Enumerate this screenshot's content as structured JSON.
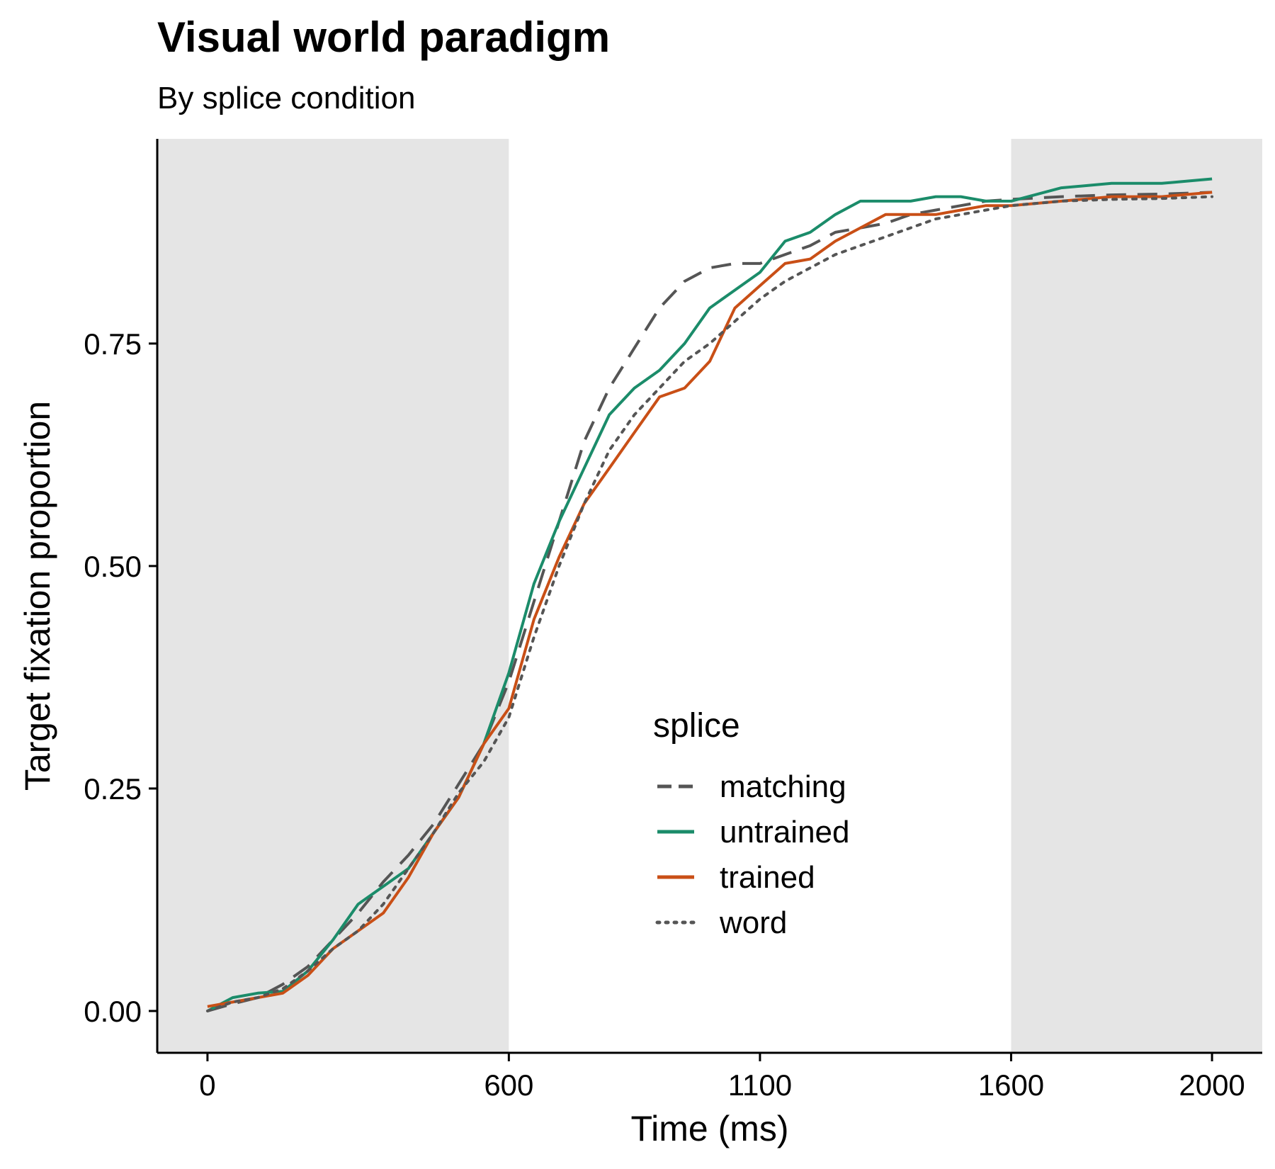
{
  "chart_data": {
    "type": "line",
    "title": "Visual world paradigm",
    "subtitle": "By splice condition",
    "xlabel": "Time (ms)",
    "ylabel": "Target fixation proportion",
    "xlim": [
      -100,
      2100
    ],
    "ylim": [
      -0.047,
      0.98
    ],
    "x_ticks": [
      0,
      600,
      1100,
      1600,
      2000
    ],
    "x_tick_labels": [
      "0",
      "600",
      "1100",
      "1600",
      "2000"
    ],
    "y_ticks": [
      0,
      0.25,
      0.5,
      0.75
    ],
    "y_tick_labels": [
      "0.00",
      "0.25",
      "0.50",
      "0.75"
    ],
    "shaded_regions": [
      {
        "x_from": -100,
        "x_to": 600,
        "color": "#e5e5e5"
      },
      {
        "x_from": 1600,
        "x_to": 2100,
        "color": "#e5e5e5"
      }
    ],
    "grid": false,
    "legend": {
      "title": "splice",
      "position": "inside-bottom-center"
    },
    "series": [
      {
        "name": "matching",
        "color": "#555555",
        "line_style": "dashed",
        "x": [
          0,
          50,
          100,
          150,
          200,
          250,
          300,
          350,
          400,
          450,
          500,
          550,
          600,
          650,
          700,
          750,
          800,
          850,
          900,
          950,
          1000,
          1050,
          1100,
          1150,
          1200,
          1250,
          1300,
          1350,
          1400,
          1450,
          1500,
          1550,
          1600,
          1700,
          1800,
          1900,
          2000
        ],
        "y": [
          0.0,
          0.008,
          0.015,
          0.03,
          0.05,
          0.08,
          0.11,
          0.145,
          0.175,
          0.21,
          0.255,
          0.3,
          0.37,
          0.46,
          0.55,
          0.64,
          0.7,
          0.745,
          0.79,
          0.82,
          0.835,
          0.84,
          0.84,
          0.85,
          0.86,
          0.875,
          0.88,
          0.885,
          0.895,
          0.9,
          0.905,
          0.91,
          0.912,
          0.915,
          0.917,
          0.918,
          0.92
        ]
      },
      {
        "name": "untrained",
        "color": "#1b8c6a",
        "line_style": "solid",
        "x": [
          0,
          50,
          100,
          150,
          200,
          250,
          300,
          350,
          400,
          450,
          500,
          550,
          600,
          650,
          700,
          750,
          800,
          850,
          900,
          950,
          1000,
          1050,
          1100,
          1150,
          1200,
          1250,
          1300,
          1350,
          1400,
          1450,
          1500,
          1550,
          1600,
          1700,
          1800,
          1900,
          2000
        ],
        "y": [
          0.0,
          0.015,
          0.02,
          0.022,
          0.045,
          0.08,
          0.12,
          0.14,
          0.16,
          0.2,
          0.24,
          0.3,
          0.38,
          0.48,
          0.55,
          0.61,
          0.67,
          0.7,
          0.72,
          0.75,
          0.79,
          0.81,
          0.83,
          0.865,
          0.875,
          0.895,
          0.91,
          0.91,
          0.91,
          0.915,
          0.915,
          0.91,
          0.91,
          0.925,
          0.93,
          0.93,
          0.935
        ]
      },
      {
        "name": "trained",
        "color": "#c94f16",
        "line_style": "solid",
        "x": [
          0,
          50,
          100,
          150,
          200,
          250,
          300,
          350,
          400,
          450,
          500,
          550,
          600,
          650,
          700,
          750,
          800,
          850,
          900,
          950,
          1000,
          1050,
          1100,
          1150,
          1200,
          1250,
          1300,
          1350,
          1400,
          1450,
          1500,
          1550,
          1600,
          1700,
          1800,
          1900,
          2000
        ],
        "y": [
          0.005,
          0.01,
          0.015,
          0.02,
          0.04,
          0.07,
          0.09,
          0.11,
          0.15,
          0.2,
          0.24,
          0.3,
          0.34,
          0.44,
          0.51,
          0.57,
          0.61,
          0.65,
          0.69,
          0.7,
          0.73,
          0.79,
          0.815,
          0.84,
          0.845,
          0.865,
          0.88,
          0.895,
          0.895,
          0.895,
          0.9,
          0.905,
          0.905,
          0.91,
          0.915,
          0.915,
          0.92
        ]
      },
      {
        "name": "word",
        "color": "#555555",
        "line_style": "dotted",
        "x": [
          0,
          50,
          100,
          150,
          200,
          250,
          300,
          350,
          400,
          450,
          500,
          550,
          600,
          650,
          700,
          750,
          800,
          850,
          900,
          950,
          1000,
          1050,
          1100,
          1150,
          1200,
          1250,
          1300,
          1350,
          1400,
          1450,
          1500,
          1550,
          1600,
          1700,
          1800,
          1900,
          2000
        ],
        "y": [
          0.0,
          0.01,
          0.015,
          0.025,
          0.045,
          0.07,
          0.09,
          0.12,
          0.16,
          0.2,
          0.245,
          0.28,
          0.33,
          0.42,
          0.5,
          0.57,
          0.63,
          0.67,
          0.7,
          0.73,
          0.75,
          0.775,
          0.8,
          0.82,
          0.835,
          0.85,
          0.86,
          0.87,
          0.88,
          0.89,
          0.895,
          0.9,
          0.905,
          0.91,
          0.912,
          0.913,
          0.915
        ]
      }
    ]
  }
}
